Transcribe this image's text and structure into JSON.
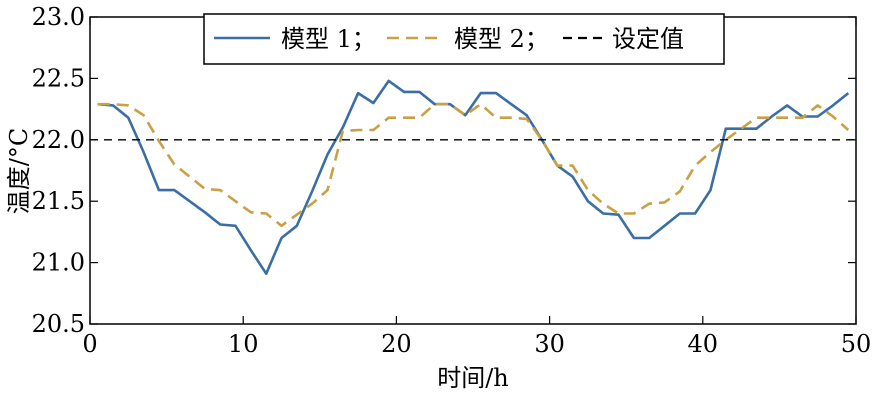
{
  "chart_data": {
    "type": "line",
    "xlabel": "时间/h",
    "ylabel": "温度/°C",
    "xlim": [
      0,
      50
    ],
    "ylim": [
      20.5,
      23.0
    ],
    "x_ticks": [
      "0",
      "10",
      "20",
      "30",
      "40",
      "50"
    ],
    "y_ticks": [
      "20.5",
      "21.0",
      "21.5",
      "22.0",
      "22.5",
      "23.0"
    ],
    "x_tick_values": [
      0,
      10,
      20,
      30,
      40,
      50
    ],
    "y_tick_values": [
      20.5,
      21.0,
      21.5,
      22.0,
      22.5,
      23.0
    ],
    "grid": false,
    "legend_position": "top-center",
    "series": [
      {
        "name": "模型 1；",
        "color": "#3a6ea5",
        "style": "solid",
        "x": [
          0.5,
          1.5,
          2.5,
          3.5,
          4.5,
          5.5,
          6.5,
          7.5,
          8.5,
          9.5,
          10.5,
          11.5,
          12.5,
          13.5,
          14.5,
          15.5,
          16.5,
          17.5,
          18.5,
          19.5,
          20.5,
          21.5,
          22.5,
          23.5,
          24.5,
          25.5,
          26.5,
          27.5,
          28.5,
          29.5,
          30.5,
          31.5,
          32.5,
          33.5,
          34.5,
          35.5,
          36.5,
          37.5,
          38.5,
          39.5,
          40.5,
          41.5,
          42.5,
          43.5,
          44.5,
          45.5,
          46.5,
          47.5,
          48.5,
          49.5
        ],
        "y": [
          22.29,
          22.28,
          22.18,
          21.9,
          21.59,
          21.59,
          21.5,
          21.41,
          21.31,
          21.3,
          21.1,
          20.91,
          21.2,
          21.3,
          21.58,
          21.88,
          22.1,
          22.38,
          22.3,
          22.48,
          22.39,
          22.39,
          22.29,
          22.29,
          22.2,
          22.38,
          22.38,
          22.29,
          22.2,
          22.0,
          21.79,
          21.7,
          21.5,
          21.4,
          21.39,
          21.2,
          21.2,
          21.3,
          21.4,
          21.4,
          21.59,
          22.09,
          22.09,
          22.09,
          22.19,
          22.28,
          22.19,
          22.19,
          22.28,
          22.38
        ]
      },
      {
        "name": "模型 2；",
        "color": "#c9a045",
        "style": "dashed",
        "x": [
          0.5,
          1.5,
          2.5,
          3.5,
          4.5,
          5.5,
          6.5,
          7.5,
          8.5,
          9.5,
          10.5,
          11.5,
          12.5,
          13.5,
          14.5,
          15.5,
          16.5,
          17.5,
          18.5,
          19.5,
          20.5,
          21.5,
          22.5,
          23.5,
          24.5,
          25.5,
          26.5,
          27.5,
          28.5,
          29.5,
          30.5,
          31.5,
          32.5,
          33.5,
          34.5,
          35.5,
          36.5,
          37.5,
          38.5,
          39.5,
          40.5,
          41.5,
          42.5,
          43.5,
          44.5,
          45.5,
          46.5,
          47.5,
          48.5,
          49.5
        ],
        "y": [
          22.29,
          22.29,
          22.28,
          22.2,
          21.99,
          21.8,
          21.7,
          21.6,
          21.59,
          21.5,
          21.41,
          21.4,
          21.3,
          21.39,
          21.48,
          21.59,
          22.07,
          22.08,
          22.08,
          22.18,
          22.18,
          22.18,
          22.29,
          22.29,
          22.2,
          22.29,
          22.18,
          22.18,
          22.17,
          22.0,
          21.79,
          21.79,
          21.59,
          21.48,
          21.4,
          21.4,
          21.48,
          21.49,
          21.58,
          21.79,
          21.9,
          22.0,
          22.09,
          22.18,
          22.18,
          22.18,
          22.18,
          22.28,
          22.19,
          22.08
        ]
      },
      {
        "name": "设定值",
        "color": "#000000",
        "style": "dashed",
        "x": [
          0,
          50
        ],
        "y": [
          22.0,
          22.0
        ]
      }
    ]
  }
}
